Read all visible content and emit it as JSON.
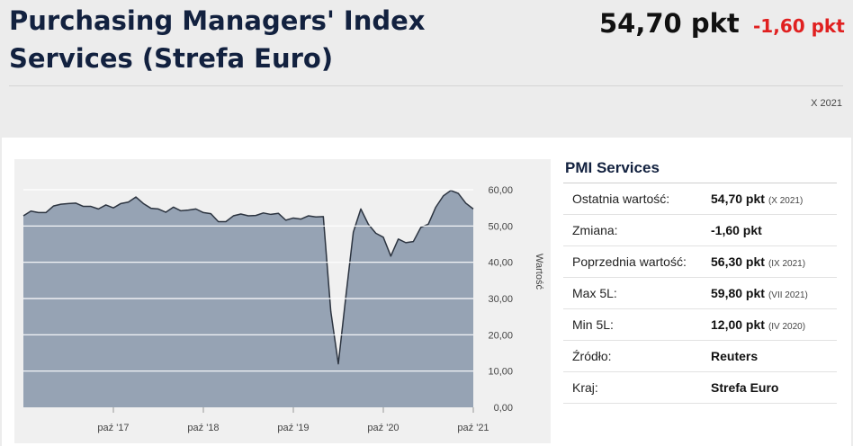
{
  "header": {
    "title": "Purchasing Managers' Index Services (Strefa Euro)",
    "value": "54,70 pkt",
    "change": "-1,60 pkt",
    "date": "X 2021"
  },
  "colors": {
    "title": "#12213f",
    "change": "#e02020",
    "area_fill": "#96a3b4",
    "line": "#2c3440"
  },
  "panel": {
    "title": "PMI Services",
    "rows": [
      {
        "label": "Ostatnia wartość:",
        "value": "54,70 pkt",
        "note": "(X 2021)"
      },
      {
        "label": "Zmiana:",
        "value": "-1,60 pkt",
        "note": ""
      },
      {
        "label": "Poprzednia wartość:",
        "value": "56,30 pkt",
        "note": "(IX 2021)"
      },
      {
        "label": "Max 5L:",
        "value": "59,80 pkt",
        "note": "(VII 2021)"
      },
      {
        "label": "Min 5L:",
        "value": "12,00 pkt",
        "note": "(IV 2020)"
      },
      {
        "label": "Źródło:",
        "value": "Reuters",
        "note": ""
      },
      {
        "label": "Kraj:",
        "value": "Strefa Euro",
        "note": ""
      }
    ]
  },
  "chart_data": {
    "type": "area",
    "title": "",
    "xlabel": "",
    "ylabel": "Wartość",
    "ylim": [
      0,
      60
    ],
    "yticks": [
      "0,00",
      "10,00",
      "20,00",
      "30,00",
      "40,00",
      "50,00",
      "60,00"
    ],
    "xticks": [
      "paź '17",
      "paź '18",
      "paź '19",
      "paź '20",
      "paź '21"
    ],
    "grid": true,
    "legend": "none",
    "x": [
      "2016-10",
      "2016-11",
      "2016-12",
      "2017-01",
      "2017-02",
      "2017-03",
      "2017-04",
      "2017-05",
      "2017-06",
      "2017-07",
      "2017-08",
      "2017-09",
      "2017-10",
      "2017-11",
      "2017-12",
      "2018-01",
      "2018-02",
      "2018-03",
      "2018-04",
      "2018-05",
      "2018-06",
      "2018-07",
      "2018-08",
      "2018-09",
      "2018-10",
      "2018-11",
      "2018-12",
      "2019-01",
      "2019-02",
      "2019-03",
      "2019-04",
      "2019-05",
      "2019-06",
      "2019-07",
      "2019-08",
      "2019-09",
      "2019-10",
      "2019-11",
      "2019-12",
      "2020-01",
      "2020-02",
      "2020-03",
      "2020-04",
      "2020-05",
      "2020-06",
      "2020-07",
      "2020-08",
      "2020-09",
      "2020-10",
      "2020-11",
      "2020-12",
      "2021-01",
      "2021-02",
      "2021-03",
      "2021-04",
      "2021-05",
      "2021-06",
      "2021-07",
      "2021-08",
      "2021-09",
      "2021-10"
    ],
    "values": [
      52.8,
      54.1,
      53.7,
      53.7,
      55.5,
      56.0,
      56.2,
      56.3,
      55.4,
      55.4,
      54.7,
      55.8,
      55.0,
      56.2,
      56.6,
      58.0,
      56.2,
      54.9,
      54.7,
      53.8,
      55.2,
      54.2,
      54.4,
      54.7,
      53.7,
      53.4,
      51.2,
      51.2,
      52.8,
      53.3,
      52.8,
      52.9,
      53.6,
      53.2,
      53.5,
      51.6,
      52.2,
      51.9,
      52.8,
      52.5,
      52.6,
      26.4,
      12.0,
      30.5,
      48.3,
      54.7,
      50.5,
      48.0,
      46.9,
      41.7,
      46.4,
      45.4,
      45.7,
      49.6,
      50.5,
      55.2,
      58.3,
      59.8,
      59.0,
      56.3,
      54.7
    ]
  }
}
